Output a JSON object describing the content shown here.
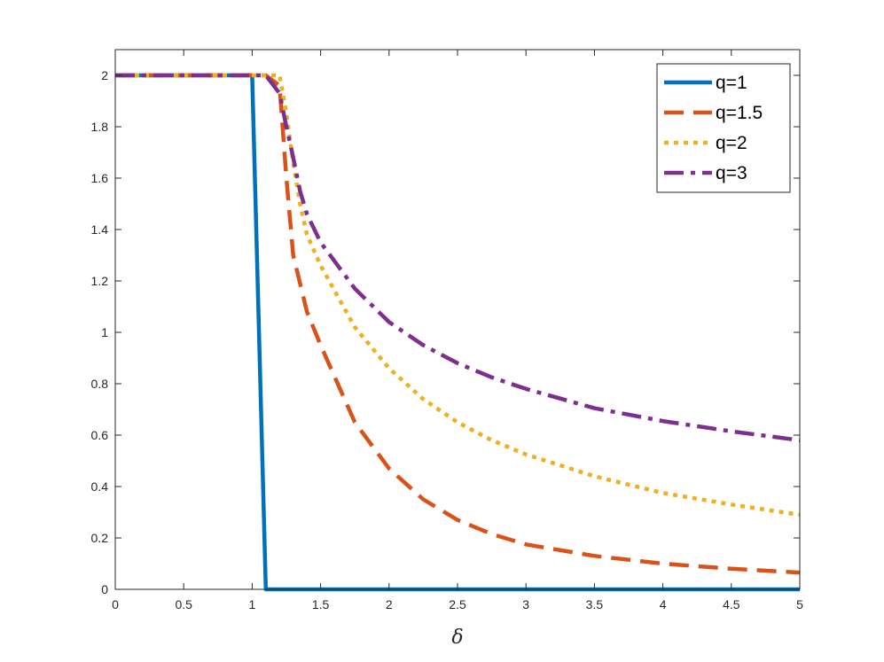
{
  "chart_data": {
    "type": "line",
    "title": "",
    "xlabel": "δ",
    "ylabel": "",
    "xlim": [
      0,
      5
    ],
    "ylim": [
      0,
      2.1
    ],
    "grid": false,
    "legend_position": "top-right",
    "x_ticks": [
      "0",
      "0.5",
      "1",
      "1.5",
      "2",
      "2.5",
      "3",
      "3.5",
      "4",
      "4.5",
      "5"
    ],
    "y_ticks": [
      "0",
      "0.2",
      "0.4",
      "0.6",
      "0.8",
      "1",
      "1.2",
      "1.4",
      "1.6",
      "1.8",
      "2"
    ],
    "series": [
      {
        "name": "q=1",
        "color": "#0072BD",
        "dash": "solid",
        "points": [
          [
            0,
            2
          ],
          [
            1.0,
            2
          ],
          [
            1.1,
            0
          ],
          [
            5,
            0
          ]
        ]
      },
      {
        "name": "q=1.5",
        "color": "#D95319",
        "dash": "dashed",
        "points": [
          [
            0,
            2
          ],
          [
            1.1,
            2
          ],
          [
            1.2,
            1.96
          ],
          [
            1.25,
            1.6
          ],
          [
            1.3,
            1.3
          ],
          [
            1.4,
            1.08
          ],
          [
            1.5,
            0.95
          ],
          [
            1.75,
            0.65
          ],
          [
            2.0,
            0.47
          ],
          [
            2.25,
            0.35
          ],
          [
            2.5,
            0.27
          ],
          [
            2.75,
            0.215
          ],
          [
            3.0,
            0.175
          ],
          [
            3.5,
            0.13
          ],
          [
            4.0,
            0.1
          ],
          [
            4.5,
            0.08
          ],
          [
            5.0,
            0.065
          ]
        ]
      },
      {
        "name": "q=2",
        "color": "#EDB120",
        "dash": "dotted",
        "points": [
          [
            0,
            2
          ],
          [
            1.2,
            2
          ],
          [
            1.25,
            1.85
          ],
          [
            1.3,
            1.66
          ],
          [
            1.35,
            1.5
          ],
          [
            1.4,
            1.38
          ],
          [
            1.5,
            1.26
          ],
          [
            1.75,
            1.02
          ],
          [
            2.0,
            0.86
          ],
          [
            2.25,
            0.74
          ],
          [
            2.5,
            0.65
          ],
          [
            2.75,
            0.58
          ],
          [
            3.0,
            0.525
          ],
          [
            3.5,
            0.44
          ],
          [
            4.0,
            0.375
          ],
          [
            4.5,
            0.33
          ],
          [
            5.0,
            0.29
          ]
        ]
      },
      {
        "name": "q=3",
        "color": "#7E2F8E",
        "dash": "dashdot",
        "points": [
          [
            0,
            2
          ],
          [
            1.1,
            2
          ],
          [
            1.2,
            1.93
          ],
          [
            1.25,
            1.8
          ],
          [
            1.3,
            1.68
          ],
          [
            1.35,
            1.55
          ],
          [
            1.4,
            1.46
          ],
          [
            1.5,
            1.35
          ],
          [
            1.75,
            1.17
          ],
          [
            2.0,
            1.04
          ],
          [
            2.25,
            0.95
          ],
          [
            2.5,
            0.88
          ],
          [
            2.75,
            0.825
          ],
          [
            3.0,
            0.78
          ],
          [
            3.5,
            0.705
          ],
          [
            4.0,
            0.655
          ],
          [
            4.5,
            0.615
          ],
          [
            5.0,
            0.58
          ]
        ]
      }
    ]
  }
}
